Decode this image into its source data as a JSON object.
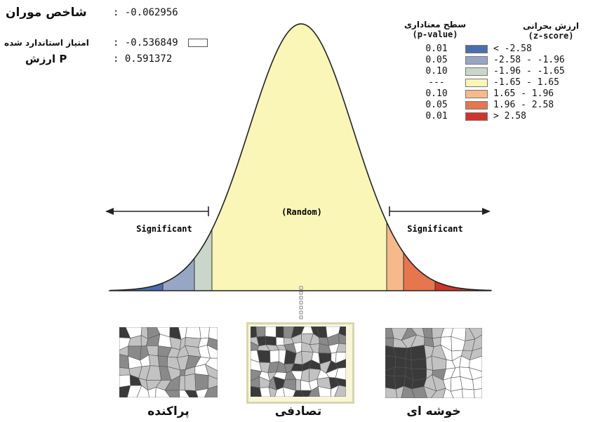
{
  "stats": [
    {
      "label": "شاخص موران",
      "value": ": -0.062956",
      "box": false
    },
    {
      "label": "امتیاز استاندارد شده",
      "value": ": -0.536849",
      "box": true
    },
    {
      "label": "P ارزش",
      "value": ": 0.591372",
      "box": false
    }
  ],
  "legend": {
    "p_header": "سطح معناداری",
    "p_sub": "(p-value)",
    "z_header": "ارزش بحرانی",
    "z_sub": "(z-score)",
    "rows": [
      {
        "p": "0.01",
        "z": "< -2.58",
        "color": "#4a6fb0"
      },
      {
        "p": "0.05",
        "z": "-2.58 - -1.96",
        "color": "#98a6c6"
      },
      {
        "p": "0.10",
        "z": "-1.96 - -1.65",
        "color": "#c9d6c9"
      },
      {
        "p": "---",
        "z": "-1.65 - 1.65",
        "color": "#f9f6b8"
      },
      {
        "p": "0.10",
        "z": "1.65 - 1.96",
        "color": "#f5b98c"
      },
      {
        "p": "0.05",
        "z": "1.96 - 2.58",
        "color": "#e5764d"
      },
      {
        "p": "0.01",
        "z": "> 2.58",
        "color": "#d1342d"
      }
    ]
  },
  "curve": {
    "random_label": "(Random)",
    "left_label": "Significant",
    "right_label": "Significant"
  },
  "patterns": [
    {
      "name": "dispersed",
      "caption": "پراکنده"
    },
    {
      "name": "random",
      "caption": "تصادفی"
    },
    {
      "name": "clustered",
      "caption": "خوشه ای"
    }
  ]
}
